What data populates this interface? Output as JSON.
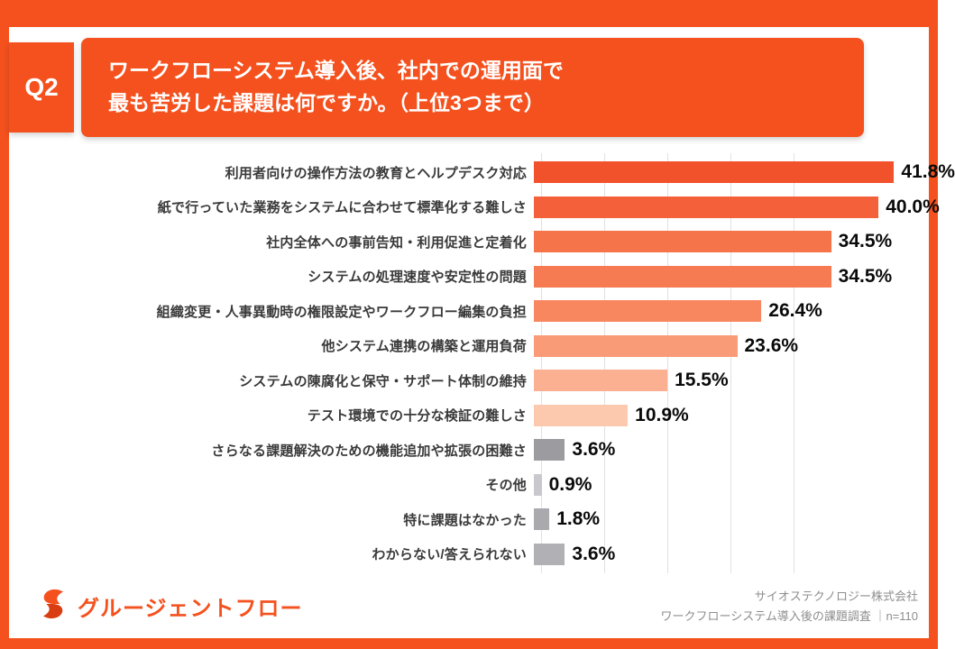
{
  "accent_color": "#F4511E",
  "header": {
    "q_label": "Q2",
    "title_line1": "ワークフローシステム導入後、社内での運用面で",
    "title_line2": "最も苦労した課題は何ですか。（上位3つまで）"
  },
  "chart_data": {
    "type": "bar",
    "orientation": "horizontal",
    "unit": "%",
    "xlim": [
      0,
      45
    ],
    "grid": true,
    "gridline_interval_percent": 10,
    "categories": [
      "利用者向けの操作方法の教育とヘルプデスク対応",
      "紙で行っていた業務をシステムに合わせて標準化する難しさ",
      "社内全体への事前告知・利用促進と定着化",
      "システムの処理速度や安定性の問題",
      "組織変更・人事異動時の権限設定やワークフロー編集の負担",
      "他システム連携の構築と運用負荷",
      "システムの陳腐化と保守・サポート体制の維持",
      "テスト環境での十分な検証の難しさ",
      "さらなる課題解決のための機能追加や拡張の困難さ",
      "その他",
      "特に課題はなかった",
      "わからない/答えられない"
    ],
    "values": [
      41.8,
      40.0,
      34.5,
      34.5,
      26.4,
      23.6,
      15.5,
      10.9,
      3.6,
      0.9,
      1.8,
      3.6
    ],
    "value_labels": [
      "41.8%",
      "40.0%",
      "34.5%",
      "34.5%",
      "26.4%",
      "23.6%",
      "15.5%",
      "10.9%",
      "3.6%",
      "0.9%",
      "1.8%",
      "3.6%"
    ],
    "bar_colors": [
      "#F1512B",
      "#F4603A",
      "#F57449",
      "#F67A52",
      "#F8875F",
      "#F99B77",
      "#FBB191",
      "#FCC9AF",
      "#9C9CA0",
      "#C9C9CD",
      "#AAAAAE",
      "#B1B1B5"
    ]
  },
  "footer": {
    "logo_icon": "gluegent-flow-logo-icon",
    "logo_text": "グルージェントフロー",
    "credit_line1": "サイオステクノロジー株式会社",
    "credit_line2": "ワークフローシステム導入後の課題調査 ｜n=110"
  }
}
